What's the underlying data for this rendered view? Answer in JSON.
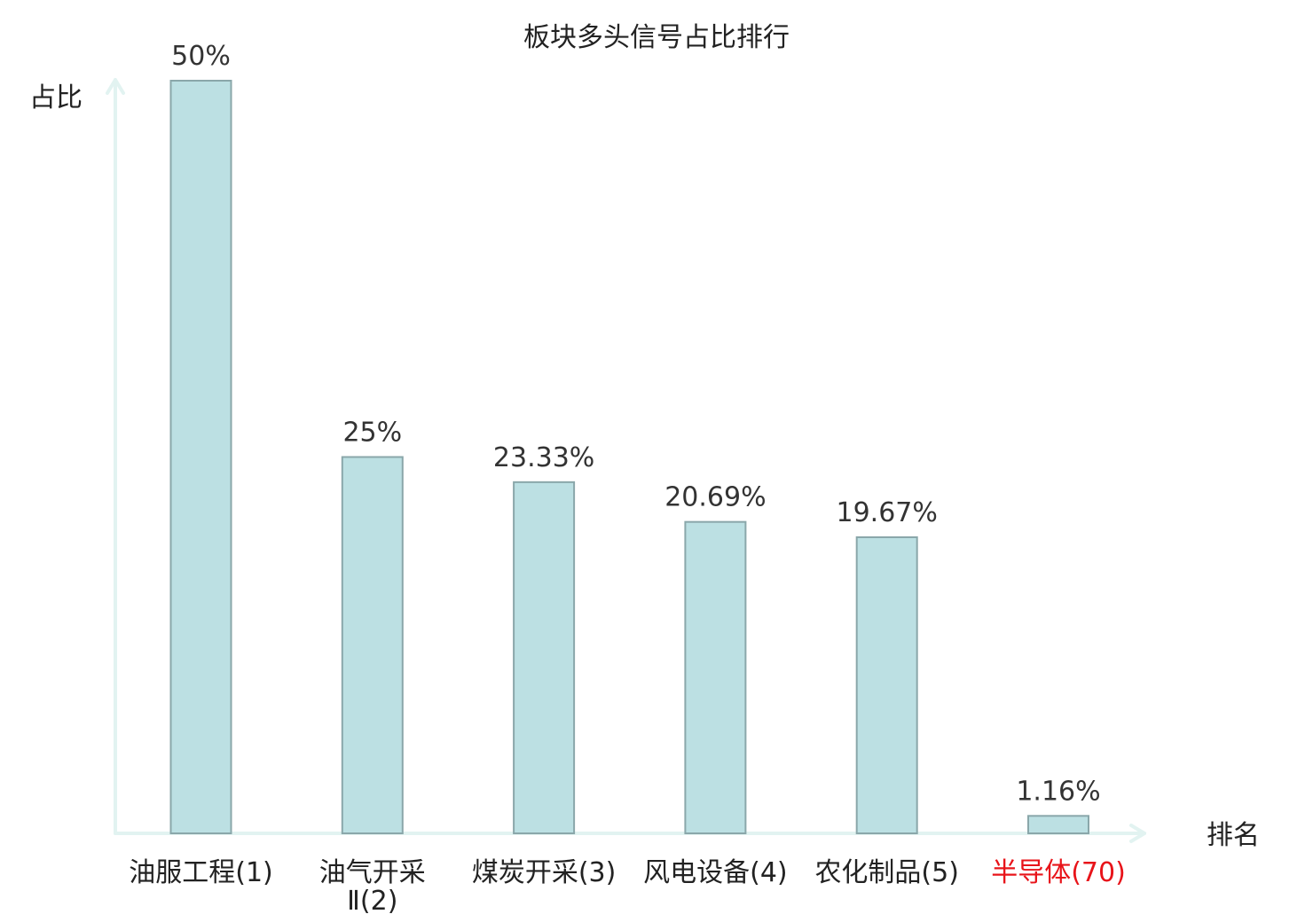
{
  "chart_data": {
    "type": "bar",
    "title": "板块多头信号占比排行",
    "ylabel": "占比",
    "xlabel": "排名",
    "categories": [
      "油服工程(1)",
      "油气开采Ⅱ(2)",
      "煤炭开采(3)",
      "风电设备(4)",
      "农化制品(5)",
      "半导体(70)"
    ],
    "values": [
      50,
      25,
      23.33,
      20.69,
      19.67,
      1.16
    ],
    "value_labels": [
      "50%",
      "25%",
      "23.33%",
      "20.69%",
      "19.67%",
      "1.16%"
    ],
    "category_lines": [
      [
        "油服工程(1)"
      ],
      [
        "油气开采",
        "Ⅱ(2)"
      ],
      [
        "煤炭开采(3)"
      ],
      [
        "风电设备(4)"
      ],
      [
        "农化制品(5)"
      ],
      [
        "半导体(70)"
      ]
    ],
    "highlight_index": 5,
    "ylim": [
      0,
      50
    ],
    "grid": false,
    "colors": {
      "bar_fill": "#bce0e3",
      "bar_stroke": "#8aa7aa",
      "axis": "#e2f3f1",
      "label": "#222222",
      "highlight": "#e8141a"
    }
  }
}
